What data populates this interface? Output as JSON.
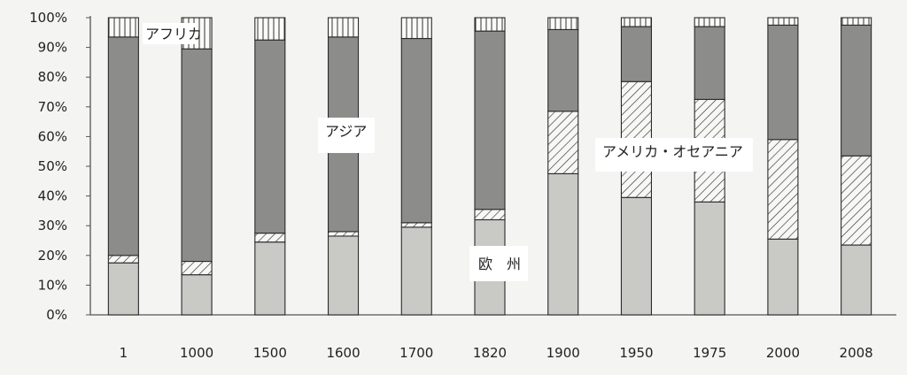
{
  "chart_data": {
    "type": "bar",
    "stacked": true,
    "percent": true,
    "categories": [
      "1",
      "1000",
      "1500",
      "1600",
      "1700",
      "1820",
      "1900",
      "1950",
      "1975",
      "2000",
      "2008"
    ],
    "series": [
      {
        "name": "欧 州",
        "pattern": "solid-light",
        "color": "#c9cac5",
        "values": [
          17.5,
          13.5,
          24.5,
          26.5,
          29.5,
          32,
          47.5,
          39.5,
          38,
          25.5,
          23.5
        ]
      },
      {
        "name": "アメリカ・オセアニア",
        "pattern": "hatch",
        "values": [
          2.5,
          4.5,
          3,
          1.5,
          1.5,
          3.5,
          21,
          39,
          34.5,
          33.5,
          30
        ]
      },
      {
        "name": "アジア",
        "pattern": "solid-dark",
        "color": "#8c8d8a",
        "values": [
          73.5,
          71.5,
          65,
          65.5,
          62,
          60,
          27.5,
          18.5,
          24.5,
          38.5,
          44
        ]
      },
      {
        "name": "アフリカ",
        "pattern": "vertical-lines",
        "values": [
          6.5,
          10.5,
          7.5,
          6.5,
          7,
          4.5,
          4,
          3,
          3,
          2.5,
          2.5
        ]
      }
    ],
    "yticks": [
      "0%",
      "10%",
      "20%",
      "30%",
      "40%",
      "50%",
      "60%",
      "70%",
      "80%",
      "90%",
      "100%"
    ],
    "ylim": [
      0,
      100
    ],
    "annotations": [
      {
        "text": "アフリカ",
        "series": "アフリカ"
      },
      {
        "text": "アジア",
        "series": "アジア"
      },
      {
        "text": "アメリカ・オセアニア",
        "series": "アメリカ・オセアニア"
      },
      {
        "text": "欧　州",
        "series": "欧 州"
      }
    ],
    "grid": false
  }
}
